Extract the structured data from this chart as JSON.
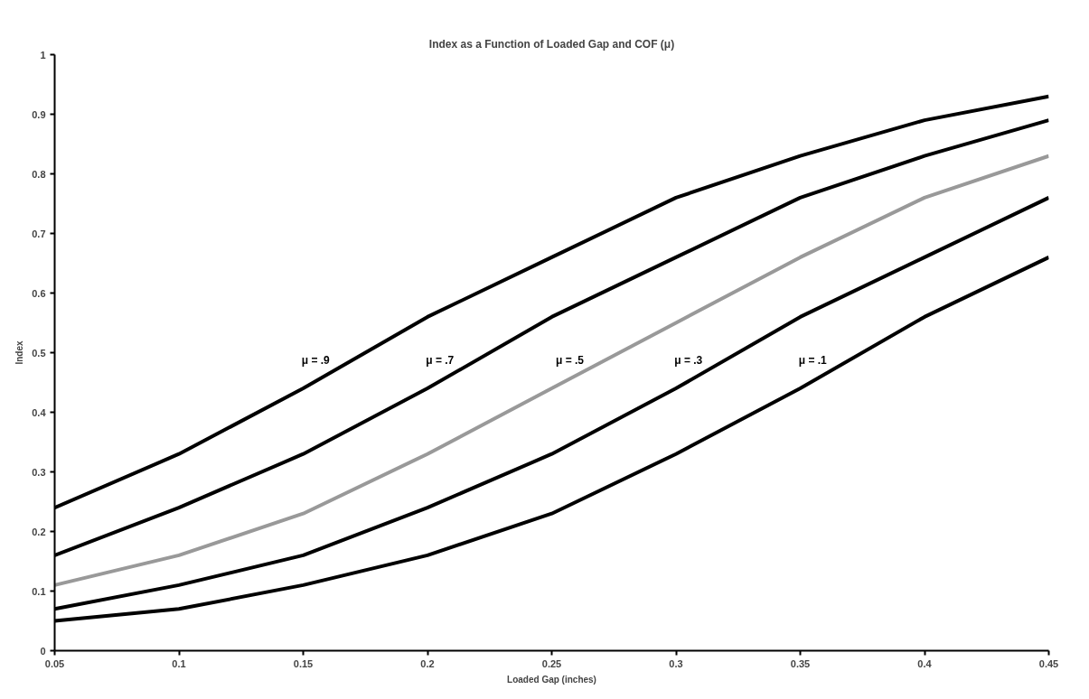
{
  "chart_data": {
    "type": "line",
    "title": "Index as a Function of Loaded Gap and COF (μ)",
    "xlabel": "Loaded Gap (inches)",
    "ylabel": "Index",
    "x": [
      0.05,
      0.1,
      0.15,
      0.2,
      0.25,
      0.3,
      0.35,
      0.4,
      0.45
    ],
    "series": [
      {
        "name": "μ = .9",
        "color": "#000000",
        "values": [
          0.24,
          0.33,
          0.44,
          0.56,
          0.66,
          0.76,
          0.83,
          0.89,
          0.93
        ]
      },
      {
        "name": "μ = .7",
        "color": "#000000",
        "values": [
          0.16,
          0.24,
          0.33,
          0.44,
          0.56,
          0.66,
          0.76,
          0.83,
          0.89
        ]
      },
      {
        "name": "μ = .5",
        "color": "#999999",
        "values": [
          0.11,
          0.16,
          0.23,
          0.33,
          0.44,
          0.55,
          0.66,
          0.76,
          0.83
        ]
      },
      {
        "name": "μ = .3",
        "color": "#000000",
        "values": [
          0.07,
          0.11,
          0.16,
          0.24,
          0.33,
          0.44,
          0.56,
          0.66,
          0.76
        ]
      },
      {
        "name": "μ = .1",
        "color": "#000000",
        "values": [
          0.05,
          0.07,
          0.11,
          0.16,
          0.23,
          0.33,
          0.44,
          0.56,
          0.66
        ]
      }
    ],
    "xlim": [
      0.05,
      0.45
    ],
    "xticks": [
      0.05,
      0.1,
      0.15,
      0.2,
      0.25,
      0.3,
      0.35,
      0.4,
      0.45
    ],
    "ylim": [
      0,
      1
    ],
    "yticks": [
      0,
      0.1,
      0.2,
      0.3,
      0.4,
      0.5,
      0.6,
      0.7,
      0.8,
      0.9,
      1
    ],
    "grid": false,
    "legend": false,
    "marker": "none",
    "line_style": "solid"
  }
}
